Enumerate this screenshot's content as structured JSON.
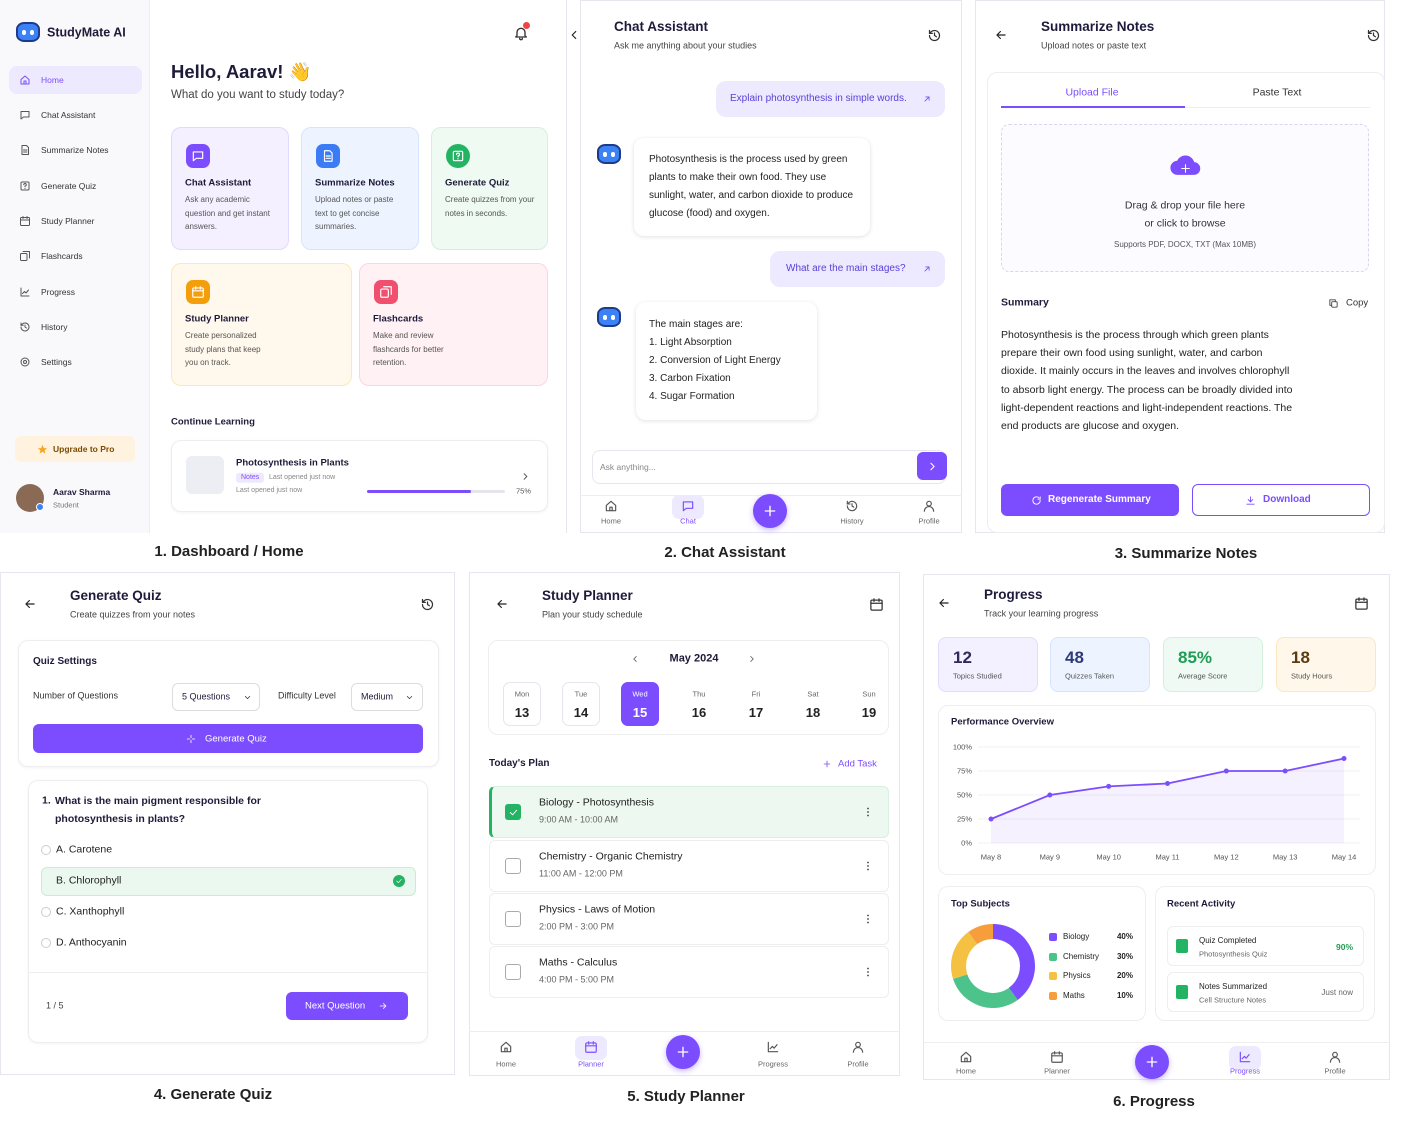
{
  "dashboard": {
    "brand": "StudyMate AI",
    "nav": [
      "Home",
      "Chat Assistant",
      "Summarize Notes",
      "Generate Quiz",
      "Study Planner",
      "Flashcards",
      "Progress",
      "History",
      "Settings"
    ],
    "upgrade": "Upgrade to Pro",
    "user": {
      "name": "Aarav Sharma",
      "role": "Student"
    },
    "greeting": "Hello, Aarav! 👋",
    "subtitle": "What do you want to study today?",
    "cards": [
      {
        "title": "Chat Assistant",
        "text": "Ask any academic question and get instant answers."
      },
      {
        "title": "Summarize Notes",
        "text": "Upload notes or paste text to get concise summaries."
      },
      {
        "title": "Generate Quiz",
        "text": "Create quizzes from your notes in seconds."
      },
      {
        "title": "Study Planner",
        "text": "Create personalized study plans that keep you on track."
      },
      {
        "title": "Flashcards",
        "text": "Make and review flashcards for better retention."
      }
    ],
    "continue_heading": "Continue Learning",
    "continue": {
      "title": "Photosynthesis in Plants",
      "tag": "Notes",
      "opened": "Last opened just now",
      "opened_again": "Last opened just now",
      "progress": {
        "value": 75,
        "label": "75%"
      }
    },
    "caption": "1. Dashboard / Home"
  },
  "chat": {
    "title": "Chat Assistant",
    "subtitle": "Ask me anything about your studies",
    "messages": [
      {
        "text": "Explain photosynthesis in simple words."
      },
      {
        "text": "Photosynthesis is the process used by green plants to make their own food. They use sunlight, water, and carbon dioxide to produce glucose (food) and oxygen."
      },
      {
        "text": "What are the main stages?"
      },
      {
        "text": "The main stages are:",
        "items": [
          "1. Light Absorption",
          "2. Conversion of Light Energy",
          "3. Carbon Fixation",
          "4. Sugar Formation"
        ]
      }
    ],
    "input_placeholder": "Ask anything...",
    "tabs": [
      "Home",
      "Chat",
      "History",
      "Profile"
    ],
    "caption": "2. Chat Assistant"
  },
  "summarize": {
    "title": "Summarize Notes",
    "subtitle": "Upload notes or paste text",
    "tabs": [
      "Upload File",
      "Paste Text"
    ],
    "drop": "Drag & drop your file here",
    "browse": "or click to browse",
    "supports": "Supports PDF, DOCX, TXT (Max 10MB)",
    "summary_heading": "Summary",
    "copy": "Copy",
    "summary": "Photosynthesis is the process through which green plants prepare their own food using sunlight, water, and carbon dioxide. It mainly occurs in the leaves and involves chlorophyll to absorb light energy. The process can be broadly divided into light-dependent reactions and light-independent reactions. The end products are glucose and oxygen.",
    "buttons": [
      "Regenerate Summary",
      "Download"
    ],
    "caption": "3. Summarize Notes"
  },
  "quiz": {
    "title": "Generate Quiz",
    "subtitle": "Create quizzes from your notes",
    "settings_heading": "Quiz Settings",
    "count_label": "Number of Questions",
    "count": "5 Questions",
    "difficulty_label": "Difficulty Level",
    "difficulty": "Medium",
    "generate": "Generate Quiz",
    "question": {
      "number": "1.",
      "text": "What is the main pigment responsible for photosynthesis in plants?",
      "options": [
        "A. Carotene",
        "B. Chlorophyll",
        "C. Xanthophyll",
        "D. Anthocyanin"
      ]
    },
    "pager": "1 / 5",
    "next": "Next Question",
    "caption": "4. Generate Quiz"
  },
  "planner": {
    "title": "Study Planner",
    "subtitle": "Plan your study schedule",
    "month": "May 2024",
    "days": [
      {
        "name": "Mon",
        "date": 13
      },
      {
        "name": "Tue",
        "date": 14
      },
      {
        "name": "Wed",
        "date": 15
      },
      {
        "name": "Thu",
        "date": 16
      },
      {
        "name": "Fri",
        "date": 17
      },
      {
        "name": "Sat",
        "date": 18
      },
      {
        "name": "Sun",
        "date": 19
      }
    ],
    "plan_heading": "Today's Plan",
    "add_task": "Add Task",
    "tasks": [
      {
        "title": "Biology - Photosynthesis",
        "time": "9:00 AM - 10:00 AM"
      },
      {
        "title": "Chemistry - Organic Chemistry",
        "time": "11:00 AM - 12:00 PM"
      },
      {
        "title": "Physics - Laws of Motion",
        "time": "2:00 PM - 3:00 PM"
      },
      {
        "title": "Maths - Calculus",
        "time": "4:00 PM - 5:00 PM"
      }
    ],
    "tabs": [
      "Home",
      "Planner",
      "Progress",
      "Profile"
    ],
    "caption": "5. Study Planner"
  },
  "progress": {
    "title": "Progress",
    "subtitle": "Track your learning progress",
    "stats": [
      {
        "value": 12,
        "label": "Topics Studied"
      },
      {
        "value": 48,
        "label": "Quizzes Taken"
      },
      {
        "value": "85%",
        "label": "Average Score"
      },
      {
        "value": 18,
        "label": "Study Hours"
      }
    ],
    "activity": {
      "heading": "Recent Activity",
      "items": [
        {
          "title": "Quiz Completed",
          "detail": "Photosynthesis Quiz",
          "result": "90%"
        },
        {
          "title": "Notes Summarized",
          "detail": "Cell Structure Notes",
          "result": "Just now"
        }
      ]
    },
    "tabs": [
      "Home",
      "Planner",
      "Progress",
      "Profile"
    ],
    "caption": "6. Progress"
  },
  "chart_data": [
    {
      "type": "line",
      "title": "Performance Overview",
      "categories": [
        "May 8",
        "May 9",
        "May 10",
        "May 11",
        "May 12",
        "May 13",
        "May 14"
      ],
      "values": [
        25,
        50,
        59,
        62,
        75,
        75,
        88
      ],
      "color": "#7c4dff",
      "ylim": [
        0,
        100
      ],
      "yticks": [
        {
          "value": 0,
          "label": "0%"
        },
        {
          "value": 25,
          "label": "25%"
        },
        {
          "value": 50,
          "label": "50%"
        },
        {
          "value": 75,
          "label": "75%"
        },
        {
          "value": 100,
          "label": "100%"
        }
      ],
      "grid": true
    },
    {
      "type": "pie",
      "title": "Top Subjects",
      "categories": [
        "Biology",
        "Chemistry",
        "Physics",
        "Maths"
      ],
      "values": [
        40,
        30,
        20,
        10
      ],
      "value_labels": [
        "40%",
        "30%",
        "20%",
        "10%"
      ],
      "colors": [
        "#7c4dff",
        "#4cc38a",
        "#f5c142",
        "#f59e3b"
      ]
    }
  ]
}
